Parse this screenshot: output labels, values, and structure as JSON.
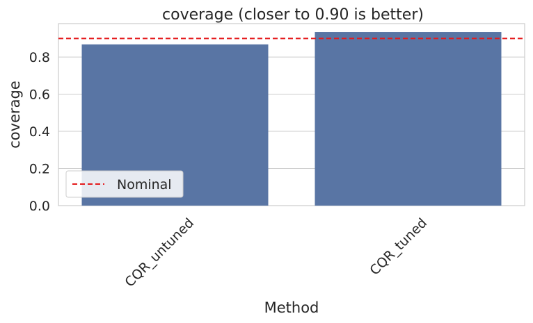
{
  "chart_data": {
    "type": "bar",
    "title": "coverage (closer to 0.90 is better)",
    "xlabel": "Method",
    "ylabel": "coverage",
    "categories": [
      "CQR_untuned",
      "CQR_tuned"
    ],
    "values": [
      0.868,
      0.935
    ],
    "ylim": [
      0,
      0.98
    ],
    "yticks": [
      0.0,
      0.2,
      0.4,
      0.6,
      0.8
    ],
    "ytick_labels": [
      "0.0",
      "0.2",
      "0.4",
      "0.6",
      "0.8"
    ],
    "reference_line": {
      "value": 0.9,
      "label": "Nominal",
      "style": "dashed",
      "color": "#e41a1c"
    },
    "legend": {
      "placement": "lower-left",
      "entries": [
        "Nominal"
      ]
    },
    "grid": "horizontal",
    "bar_color": "#5975a4"
  }
}
